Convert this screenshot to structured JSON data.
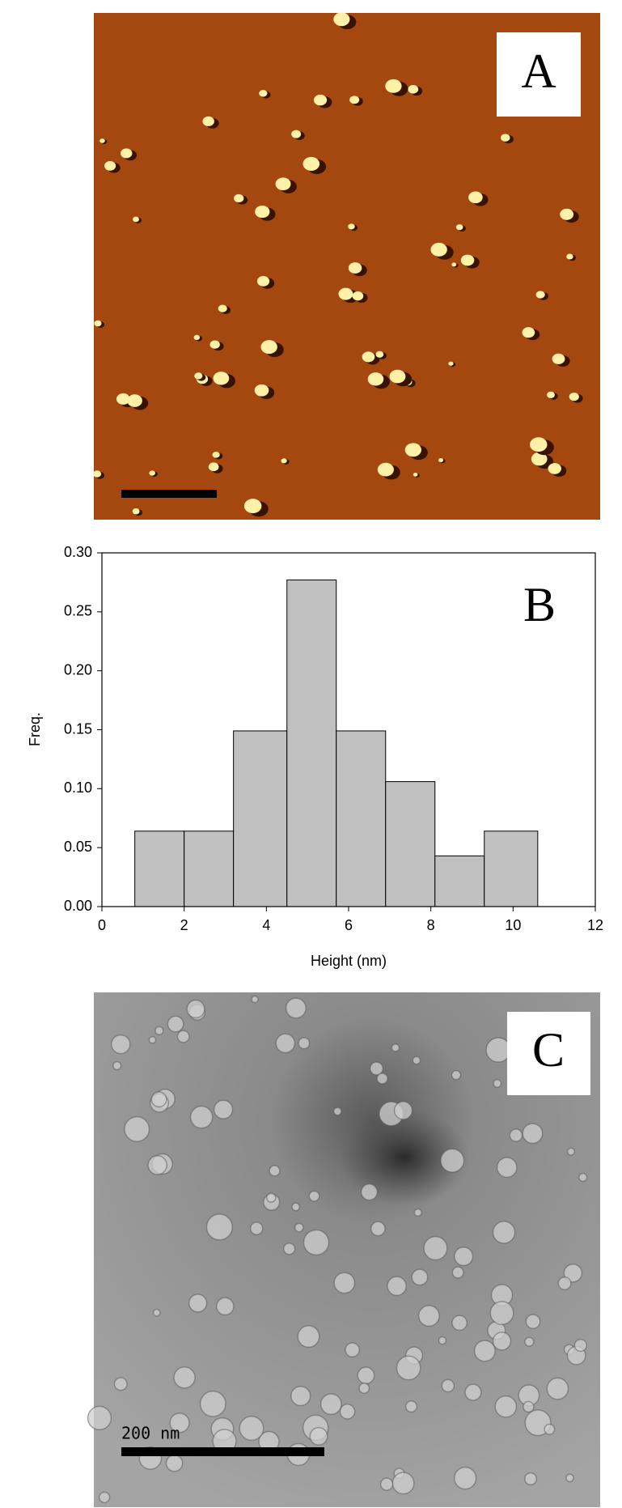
{
  "panel_a": {
    "label": "A"
  },
  "chart_data": {
    "type": "histogram",
    "annotation": "B",
    "x_label": "Height (nm)",
    "y_label": "Freq.",
    "bins": [
      0.8,
      2.0,
      3.2,
      4.5,
      5.7,
      6.9,
      8.1,
      9.3,
      10.6
    ],
    "values": [
      0.064,
      0.064,
      0.149,
      0.277,
      0.149,
      0.106,
      0.043,
      0.064
    ],
    "color": "#c0c0c0",
    "xlim": [
      0,
      12
    ],
    "xticks": [
      0,
      2,
      4,
      6,
      8,
      10,
      12
    ],
    "ylim": [
      0,
      0.3
    ],
    "yticks": [
      {
        "value": 0,
        "label": "0.00"
      },
      {
        "value": 0.05,
        "label": "0.05"
      },
      {
        "value": 0.1,
        "label": "0.10"
      },
      {
        "value": 0.15,
        "label": "0.15"
      },
      {
        "value": 0.2,
        "label": "0.20"
      },
      {
        "value": 0.25,
        "label": "0.25"
      },
      {
        "value": 0.3,
        "label": "0.30"
      }
    ]
  },
  "panel_c": {
    "label": "C",
    "scale_text": "200 nm"
  }
}
